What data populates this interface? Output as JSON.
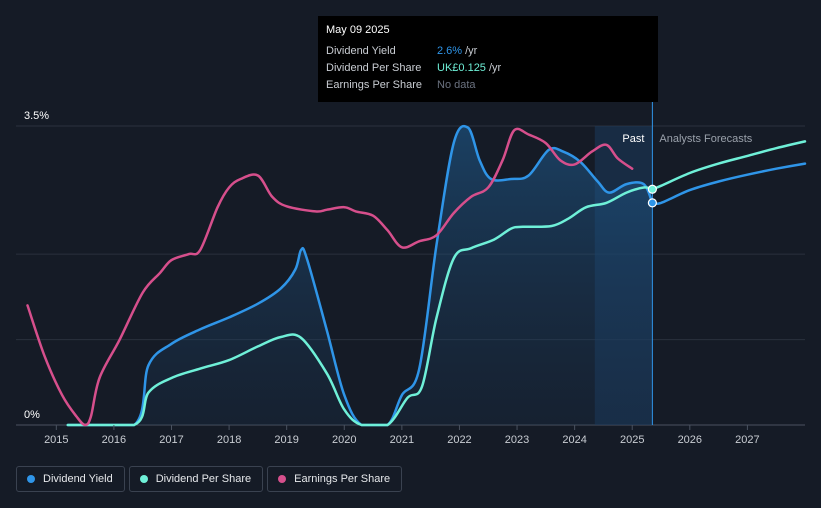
{
  "tooltip": {
    "date": "May 09 2025",
    "rows": [
      {
        "label": "Dividend Yield",
        "value": "2.6%",
        "unit": "/yr"
      },
      {
        "label": "Dividend Per Share",
        "value": "UK£0.125",
        "unit": "/yr"
      },
      {
        "label": "Earnings Per Share",
        "value": "No data",
        "unit": ""
      }
    ]
  },
  "legend": [
    {
      "label": "Dividend Yield",
      "color": "#2f95e8"
    },
    {
      "label": "Dividend Per Share",
      "color": "#6ff0d8"
    },
    {
      "label": "Earnings Per Share",
      "color": "#d64f8c"
    }
  ],
  "chart_data": {
    "type": "line",
    "x_ticks": [
      "2015",
      "2016",
      "2017",
      "2018",
      "2019",
      "2020",
      "2021",
      "2022",
      "2023",
      "2024",
      "2025",
      "2026",
      "2027"
    ],
    "y_ticks": [
      "3.5%",
      "0%"
    ],
    "ylim": [
      0,
      3.5
    ],
    "xlim": [
      2014.3,
      2028.0
    ],
    "region_labels": {
      "past": "Past",
      "forecast": "Analysts Forecasts"
    },
    "past_end": 2025.35,
    "shaded_start": 2024.35,
    "series": [
      {
        "name": "Dividend Yield",
        "color": "#2f95e8",
        "fill": true,
        "points": [
          [
            2015.2,
            0
          ],
          [
            2016.35,
            0
          ],
          [
            2016.6,
            0.7
          ],
          [
            2017,
            0.95
          ],
          [
            2017.5,
            1.12
          ],
          [
            2018,
            1.26
          ],
          [
            2018.5,
            1.42
          ],
          [
            2018.9,
            1.6
          ],
          [
            2019.15,
            1.82
          ],
          [
            2019.25,
            2.05
          ],
          [
            2019.35,
            1.95
          ],
          [
            2019.7,
            1.1
          ],
          [
            2020,
            0.35
          ],
          [
            2020.3,
            0
          ],
          [
            2020.75,
            0
          ],
          [
            2021,
            0.35
          ],
          [
            2021.3,
            0.65
          ],
          [
            2021.6,
            2.1
          ],
          [
            2021.9,
            3.3
          ],
          [
            2022.15,
            3.48
          ],
          [
            2022.35,
            3.1
          ],
          [
            2022.55,
            2.88
          ],
          [
            2022.9,
            2.88
          ],
          [
            2023.2,
            2.92
          ],
          [
            2023.55,
            3.22
          ],
          [
            2023.8,
            3.2
          ],
          [
            2024.1,
            3.08
          ],
          [
            2024.4,
            2.85
          ],
          [
            2024.6,
            2.72
          ],
          [
            2024.9,
            2.82
          ],
          [
            2025.2,
            2.82
          ],
          [
            2025.35,
            2.6
          ]
        ]
      },
      {
        "name": "Dividend Per Share",
        "color": "#6ff0d8",
        "fill": false,
        "points": [
          [
            2015.2,
            0
          ],
          [
            2016.35,
            0
          ],
          [
            2016.6,
            0.38
          ],
          [
            2017,
            0.55
          ],
          [
            2017.5,
            0.66
          ],
          [
            2018,
            0.76
          ],
          [
            2018.5,
            0.92
          ],
          [
            2018.9,
            1.03
          ],
          [
            2019.25,
            1.02
          ],
          [
            2019.7,
            0.6
          ],
          [
            2020,
            0.18
          ],
          [
            2020.3,
            0
          ],
          [
            2020.75,
            0
          ],
          [
            2021.1,
            0.32
          ],
          [
            2021.35,
            0.45
          ],
          [
            2021.6,
            1.25
          ],
          [
            2021.9,
            1.95
          ],
          [
            2022.2,
            2.07
          ],
          [
            2022.6,
            2.17
          ],
          [
            2022.9,
            2.3
          ],
          [
            2023.1,
            2.32
          ],
          [
            2023.6,
            2.33
          ],
          [
            2023.9,
            2.42
          ],
          [
            2024.2,
            2.55
          ],
          [
            2024.55,
            2.6
          ],
          [
            2024.9,
            2.72
          ],
          [
            2025.2,
            2.78
          ],
          [
            2025.35,
            2.76
          ]
        ]
      },
      {
        "name": "Earnings Per Share",
        "color": "#d64f8c",
        "fill": false,
        "points": [
          [
            2014.5,
            1.4
          ],
          [
            2014.8,
            0.8
          ],
          [
            2015.1,
            0.35
          ],
          [
            2015.35,
            0.1
          ],
          [
            2015.5,
            0
          ],
          [
            2015.6,
            0.1
          ],
          [
            2015.75,
            0.55
          ],
          [
            2016.1,
            1.0
          ],
          [
            2016.5,
            1.55
          ],
          [
            2016.8,
            1.78
          ],
          [
            2017.0,
            1.93
          ],
          [
            2017.3,
            2.0
          ],
          [
            2017.5,
            2.05
          ],
          [
            2017.8,
            2.55
          ],
          [
            2018.0,
            2.78
          ],
          [
            2018.2,
            2.88
          ],
          [
            2018.5,
            2.92
          ],
          [
            2018.75,
            2.67
          ],
          [
            2019.0,
            2.56
          ],
          [
            2019.5,
            2.5
          ],
          [
            2019.7,
            2.52
          ],
          [
            2020.0,
            2.55
          ],
          [
            2020.2,
            2.5
          ],
          [
            2020.5,
            2.45
          ],
          [
            2020.75,
            2.28
          ],
          [
            2021.0,
            2.08
          ],
          [
            2021.3,
            2.15
          ],
          [
            2021.6,
            2.22
          ],
          [
            2021.9,
            2.48
          ],
          [
            2022.2,
            2.67
          ],
          [
            2022.5,
            2.78
          ],
          [
            2022.75,
            3.1
          ],
          [
            2022.95,
            3.45
          ],
          [
            2023.2,
            3.4
          ],
          [
            2023.5,
            3.3
          ],
          [
            2023.75,
            3.1
          ],
          [
            2024.0,
            3.05
          ],
          [
            2024.3,
            3.2
          ],
          [
            2024.55,
            3.28
          ],
          [
            2024.75,
            3.12
          ],
          [
            2025.0,
            3.0
          ]
        ]
      },
      {
        "name": "Dividend Yield",
        "color": "#2f95e8",
        "fill": false,
        "forecast": true,
        "points": [
          [
            2025.35,
            2.6
          ],
          [
            2025.5,
            2.6
          ],
          [
            2026.0,
            2.75
          ],
          [
            2026.5,
            2.85
          ],
          [
            2027.0,
            2.93
          ],
          [
            2027.5,
            3.0
          ],
          [
            2028.0,
            3.06
          ]
        ]
      },
      {
        "name": "Dividend Per Share",
        "color": "#6ff0d8",
        "fill": false,
        "forecast": true,
        "points": [
          [
            2025.35,
            2.76
          ],
          [
            2025.5,
            2.8
          ],
          [
            2026.0,
            2.95
          ],
          [
            2026.5,
            3.06
          ],
          [
            2027.0,
            3.15
          ],
          [
            2027.5,
            3.24
          ],
          [
            2028.0,
            3.32
          ]
        ]
      }
    ],
    "markers": [
      {
        "series": "Dividend Yield",
        "x": 2025.35,
        "y": 2.6,
        "color": "#2f95e8"
      },
      {
        "series": "Dividend Per Share",
        "x": 2025.35,
        "y": 2.76,
        "color": "#6ff0d8"
      }
    ]
  }
}
